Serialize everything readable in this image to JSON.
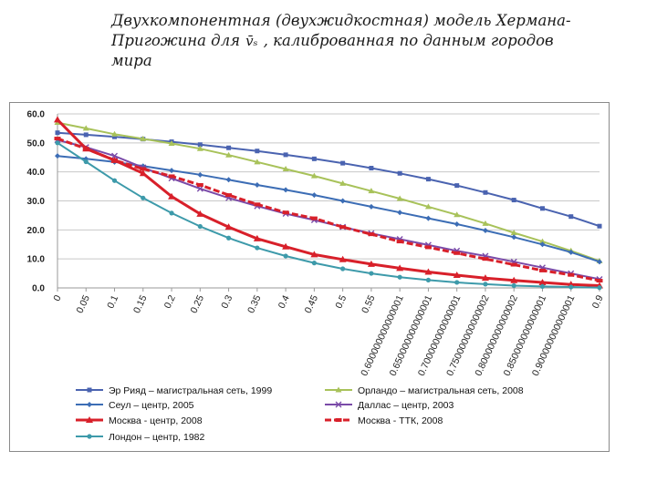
{
  "title": {
    "line1": "Двухкомпонентная  (двухжидкостная) модель Хермана-",
    "line2_before": "Пригожина  для",
    "symbol": "v̄ₛ",
    "line2_after": ", калиброванная по данным городов",
    "line3": "мира"
  },
  "chart_data": {
    "type": "line",
    "x": [
      "0",
      "0.05",
      "0.1",
      "0.15",
      "0.2",
      "0.25",
      "0.3",
      "0.35",
      "0.4",
      "0.45",
      "0.5",
      "0.55",
      "0.600000000000001",
      "0.650000000000001",
      "0.700000000000001",
      "0.750000000000002",
      "0.800000000000002",
      "0.850000000000001",
      "0.900000000000001",
      "0.9"
    ],
    "y_ticks": [
      "0.0",
      "10.0",
      "20.0",
      "30.0",
      "40.0",
      "50.0",
      "60.0"
    ],
    "ylim": [
      0,
      60
    ],
    "grid": true,
    "legend_position": "bottom",
    "series": [
      {
        "name": "Эр Рияд – магистральная сеть, 1999",
        "color": "#4a63b0",
        "marker": "square",
        "values": [
          53.5,
          52.8,
          52.1,
          51.3,
          50.4,
          49.4,
          48.3,
          47.2,
          45.9,
          44.5,
          43.0,
          41.3,
          39.5,
          37.5,
          35.3,
          32.9,
          30.3,
          27.4,
          24.6,
          21.3
        ]
      },
      {
        "name": "Орландо – магистральная сеть, 2008",
        "color": "#a8c25a",
        "marker": "triangle",
        "values": [
          57.0,
          55.0,
          53.0,
          51.4,
          49.8,
          48.0,
          45.8,
          43.4,
          41.0,
          38.6,
          36.0,
          33.4,
          30.8,
          28.0,
          25.2,
          22.2,
          19.0,
          16.0,
          12.8,
          9.3
        ]
      },
      {
        "name": "Сеул – центр, 2005",
        "color": "#3c6db5",
        "marker": "diamond",
        "values": [
          45.5,
          44.5,
          43.4,
          42.0,
          40.5,
          39.0,
          37.3,
          35.5,
          33.8,
          32.0,
          30.0,
          28.0,
          26.0,
          24.0,
          22.0,
          19.8,
          17.5,
          15.0,
          12.3,
          9.0
        ]
      },
      {
        "name": "Даллас – центр, 2003",
        "color": "#7a4aa8",
        "marker": "x",
        "values": [
          51.0,
          48.5,
          45.5,
          41.5,
          37.8,
          34.2,
          31.0,
          28.2,
          25.6,
          23.4,
          21.0,
          18.8,
          16.8,
          14.8,
          12.8,
          11.0,
          9.0,
          7.0,
          5.0,
          3.0
        ]
      },
      {
        "name": "Москва - центр, 2008",
        "color": "#d8202a",
        "marker": "triangle-red",
        "values": [
          58.0,
          48.0,
          44.0,
          39.5,
          31.5,
          25.5,
          21.0,
          17.0,
          14.2,
          11.5,
          9.8,
          8.2,
          6.8,
          5.5,
          4.4,
          3.4,
          2.6,
          1.9,
          1.2,
          0.8
        ]
      },
      {
        "name": "Москва - ТТК, 2008",
        "color": "#d8202a",
        "marker": "dash",
        "values": [
          51.5,
          48.0,
          44.0,
          41.0,
          38.5,
          35.5,
          32.0,
          28.8,
          26.0,
          24.0,
          21.0,
          18.5,
          16.0,
          14.0,
          12.0,
          10.0,
          8.0,
          6.0,
          4.5,
          2.5
        ]
      },
      {
        "name": "Лондон – центр,  1982",
        "color": "#3d9aaa",
        "marker": "circle",
        "values": [
          50.0,
          43.5,
          37.0,
          31.0,
          25.8,
          21.2,
          17.2,
          13.8,
          11.0,
          8.6,
          6.6,
          5.0,
          3.7,
          2.7,
          1.9,
          1.3,
          0.8,
          0.5,
          0.3,
          0.1
        ]
      }
    ]
  }
}
